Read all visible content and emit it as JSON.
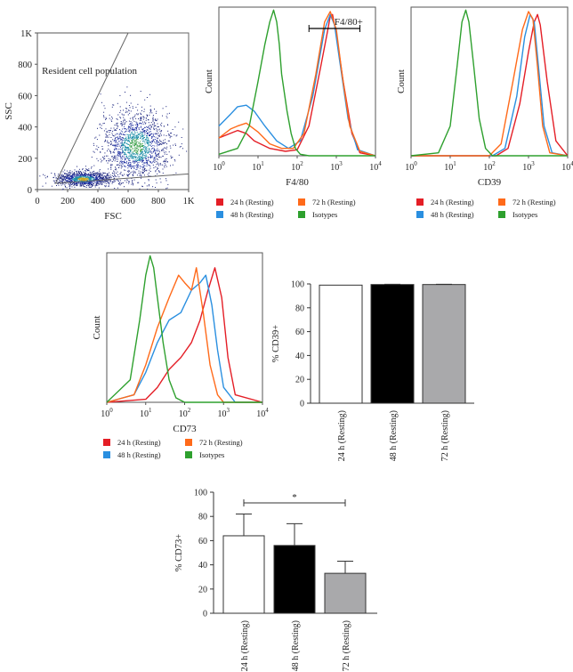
{
  "colors": {
    "red": "#e41e26",
    "orange": "#ff6a1a",
    "blue": "#2a8fe0",
    "green": "#2ea02e",
    "black": "#000000",
    "gray": "#a9a9ab",
    "white": "#ffffff"
  },
  "legend_entries": [
    "24 h (Resting)",
    "72 h (Resting)",
    "48 h (Resting)",
    "Isotypes"
  ],
  "chart_data": [
    {
      "id": "scatter",
      "type": "scatter",
      "title": "",
      "xlabel": "FSC",
      "ylabel": "SSC",
      "xlim": [
        0,
        1000
      ],
      "ylim": [
        0,
        1000
      ],
      "xticks": [
        "0",
        "200",
        "400",
        "600",
        "800",
        "1K"
      ],
      "yticks": [
        "0",
        "200",
        "400",
        "600",
        "800",
        "1K"
      ],
      "annotation": "Resident cell population",
      "gate": [
        [
          120,
          40
        ],
        [
          600,
          1000
        ],
        [
          1000,
          1000
        ],
        [
          1000,
          100
        ]
      ],
      "density_clusters": [
        {
          "x": 650,
          "y": 280,
          "spread_x": 190,
          "spread_y": 190,
          "weight": 0.6
        },
        {
          "x": 300,
          "y": 70,
          "spread_x": 150,
          "spread_y": 40,
          "weight": 0.4
        }
      ]
    },
    {
      "id": "f480",
      "type": "line",
      "title": "",
      "xlabel": "F4/80",
      "ylabel": "Count",
      "xscale": "log",
      "xlim": [
        1,
        10000
      ],
      "ylim": [
        0,
        1
      ],
      "xticks": [
        "10^0",
        "10^1",
        "10^2",
        "10^3",
        "10^4"
      ],
      "gate_label": "F4/80+",
      "gate_range": [
        200,
        4000
      ],
      "series": [
        {
          "name": "24 h (Resting)",
          "color": "red",
          "x": [
            1,
            3,
            5,
            8,
            20,
            50,
            100,
            200,
            400,
            600,
            700,
            800,
            1000,
            1500,
            2500,
            4000,
            10000
          ],
          "y": [
            0.12,
            0.17,
            0.15,
            0.1,
            0.05,
            0.03,
            0.04,
            0.2,
            0.6,
            0.84,
            0.94,
            0.95,
            0.82,
            0.5,
            0.15,
            0.02,
            0
          ]
        },
        {
          "name": "48 h (Resting)",
          "color": "blue",
          "x": [
            1,
            2,
            3,
            5,
            8,
            15,
            30,
            60,
            120,
            250,
            500,
            700,
            900,
            1200,
            2000,
            3500,
            10000
          ],
          "y": [
            0.2,
            0.28,
            0.33,
            0.34,
            0.3,
            0.2,
            0.1,
            0.05,
            0.1,
            0.4,
            0.85,
            0.95,
            0.88,
            0.65,
            0.25,
            0.04,
            0
          ]
        },
        {
          "name": "72 h (Resting)",
          "color": "orange",
          "x": [
            1,
            2,
            3,
            5,
            10,
            20,
            40,
            80,
            150,
            300,
            500,
            700,
            1000,
            1400,
            2200,
            4000,
            10000
          ],
          "y": [
            0.12,
            0.18,
            0.2,
            0.22,
            0.16,
            0.08,
            0.05,
            0.05,
            0.15,
            0.55,
            0.9,
            0.97,
            0.85,
            0.55,
            0.2,
            0.03,
            0
          ]
        },
        {
          "name": "Isotypes",
          "color": "green",
          "x": [
            1,
            3,
            6,
            10,
            15,
            20,
            25,
            30,
            35,
            40,
            55,
            70,
            90,
            120,
            200,
            10000
          ],
          "y": [
            0.01,
            0.05,
            0.2,
            0.5,
            0.75,
            0.9,
            0.98,
            0.9,
            0.75,
            0.55,
            0.3,
            0.15,
            0.05,
            0.01,
            0,
            0
          ]
        }
      ]
    },
    {
      "id": "cd39",
      "type": "line",
      "title": "",
      "xlabel": "CD39",
      "ylabel": "Count",
      "xscale": "log",
      "xlim": [
        1,
        10000
      ],
      "ylim": [
        0,
        1
      ],
      "xticks": [
        "10^0",
        "10^1",
        "10^2",
        "10^3",
        "10^4"
      ],
      "series": [
        {
          "name": "24 h (Resting)",
          "color": "red",
          "x": [
            1,
            150,
            300,
            600,
            1000,
            1400,
            1700,
            2000,
            3000,
            5000,
            10000
          ],
          "y": [
            0,
            0,
            0.05,
            0.35,
            0.7,
            0.9,
            0.95,
            0.88,
            0.5,
            0.1,
            0
          ]
        },
        {
          "name": "48 h (Resting)",
          "color": "blue",
          "x": [
            1,
            120,
            250,
            500,
            800,
            1100,
            1400,
            1800,
            2500,
            4000,
            10000
          ],
          "y": [
            0,
            0,
            0.05,
            0.4,
            0.8,
            0.95,
            0.9,
            0.6,
            0.2,
            0.02,
            0
          ]
        },
        {
          "name": "72 h (Resting)",
          "color": "orange",
          "x": [
            1,
            100,
            200,
            400,
            700,
            1000,
            1300,
            1700,
            2300,
            3500,
            10000
          ],
          "y": [
            0,
            0,
            0.08,
            0.5,
            0.85,
            0.97,
            0.92,
            0.6,
            0.2,
            0.02,
            0
          ]
        },
        {
          "name": "Isotypes",
          "color": "green",
          "x": [
            1,
            5,
            10,
            15,
            20,
            25,
            30,
            40,
            55,
            80,
            120,
            10000
          ],
          "y": [
            0,
            0.02,
            0.2,
            0.6,
            0.9,
            0.98,
            0.9,
            0.6,
            0.25,
            0.05,
            0,
            0
          ]
        }
      ]
    },
    {
      "id": "cd73",
      "type": "line",
      "title": "",
      "xlabel": "CD73",
      "ylabel": "Count",
      "xscale": "log",
      "xlim": [
        1,
        10000
      ],
      "ylim": [
        0,
        1
      ],
      "xticks": [
        "10^0",
        "10^1",
        "10^2",
        "10^3",
        "10^4"
      ],
      "series": [
        {
          "name": "24 h (Resting)",
          "color": "red",
          "x": [
            1,
            10,
            20,
            40,
            80,
            150,
            250,
            400,
            600,
            900,
            1300,
            2000,
            10000
          ],
          "y": [
            0,
            0.02,
            0.1,
            0.22,
            0.3,
            0.4,
            0.55,
            0.75,
            0.9,
            0.7,
            0.3,
            0.05,
            0
          ]
        },
        {
          "name": "48 h (Resting)",
          "color": "blue",
          "x": [
            1,
            5,
            10,
            20,
            40,
            80,
            150,
            250,
            350,
            500,
            700,
            1000,
            2000,
            10000
          ],
          "y": [
            0,
            0.05,
            0.2,
            0.4,
            0.55,
            0.6,
            0.75,
            0.8,
            0.85,
            0.65,
            0.35,
            0.1,
            0,
            0
          ]
        },
        {
          "name": "72 h (Resting)",
          "color": "orange",
          "x": [
            1,
            5,
            10,
            20,
            40,
            70,
            100,
            150,
            200,
            300,
            450,
            700,
            1000,
            10000
          ],
          "y": [
            0,
            0.05,
            0.25,
            0.5,
            0.7,
            0.85,
            0.8,
            0.75,
            0.9,
            0.6,
            0.25,
            0.05,
            0,
            0
          ]
        },
        {
          "name": "Isotypes",
          "color": "green",
          "x": [
            1,
            4,
            7,
            10,
            13,
            16,
            20,
            28,
            40,
            60,
            100,
            10000
          ],
          "y": [
            0,
            0.15,
            0.55,
            0.85,
            0.98,
            0.9,
            0.7,
            0.4,
            0.15,
            0.03,
            0,
            0
          ]
        }
      ]
    },
    {
      "id": "cd39pct",
      "type": "bar",
      "title": "",
      "xlabel": "",
      "ylabel": "% CD39+",
      "ylim": [
        0,
        100
      ],
      "yticks": [
        "0",
        "20",
        "40",
        "60",
        "80",
        "100"
      ],
      "categories": [
        "24 h (Resting)",
        "48 h (Resting)",
        "72 h (Resting)"
      ],
      "values": [
        99,
        99.5,
        99.5
      ],
      "errors": [
        0,
        0.2,
        0.2
      ],
      "bar_colors": [
        "white",
        "black",
        "gray"
      ]
    },
    {
      "id": "cd73pct",
      "type": "bar",
      "title": "",
      "xlabel": "",
      "ylabel": "% CD73+",
      "ylim": [
        0,
        100
      ],
      "yticks": [
        "0",
        "20",
        "40",
        "60",
        "80",
        "100"
      ],
      "categories": [
        "24 h (Resting)",
        "48 h (Resting)",
        "72 h (Resting)"
      ],
      "values": [
        64,
        56,
        33
      ],
      "errors": [
        18,
        18,
        10
      ],
      "bar_colors": [
        "white",
        "black",
        "gray"
      ],
      "significance": {
        "from": 0,
        "to": 2,
        "label": "*"
      }
    }
  ]
}
